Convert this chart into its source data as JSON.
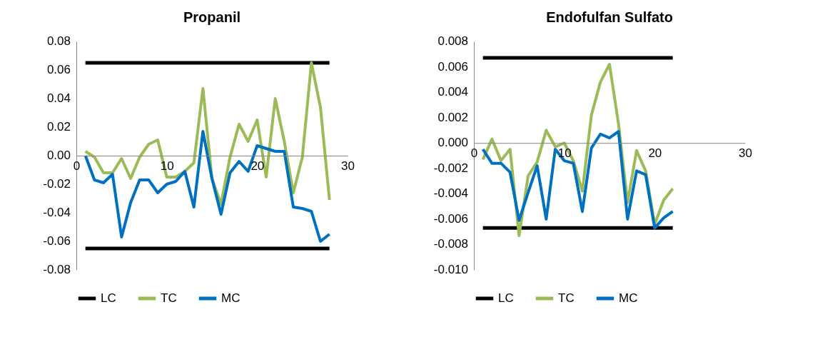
{
  "chart_data": [
    {
      "type": "line",
      "title": "Propanil",
      "xlim": [
        0,
        30
      ],
      "xticks": [
        0,
        10,
        20,
        30
      ],
      "ylim": [
        -0.08,
        0.08
      ],
      "yticks": [
        {
          "value": -0.08,
          "label": "-0.08"
        },
        {
          "value": -0.06,
          "label": "-0.06"
        },
        {
          "value": -0.04,
          "label": "-0.04"
        },
        {
          "value": -0.02,
          "label": "-0.02"
        },
        {
          "value": 0,
          "label": "0.00"
        },
        {
          "value": 0.02,
          "label": "0.02"
        },
        {
          "value": 0.04,
          "label": "0.04"
        },
        {
          "value": 0.06,
          "label": "0.06"
        },
        {
          "value": 0.08,
          "label": "0.08"
        }
      ],
      "grid": false,
      "legend": "bottom",
      "line_style": "solid",
      "marker": "none",
      "series": [
        {
          "name": "LC",
          "color": "#000000",
          "x": [
            1,
            28
          ],
          "values": [
            0.065,
            0.065
          ]
        },
        {
          "color": "#000000",
          "x": [
            1,
            28
          ],
          "values": [
            -0.065,
            -0.065
          ]
        },
        {
          "name": "TC",
          "color": "#9bbb59",
          "x": [
            1,
            2,
            3,
            4,
            5,
            6,
            7,
            8,
            9,
            10,
            11,
            12,
            13,
            14,
            15,
            16,
            17,
            18,
            19,
            20,
            21,
            22,
            23,
            24,
            25,
            26,
            27,
            28
          ],
          "values": [
            0.003,
            -0.001,
            -0.012,
            -0.012,
            -0.002,
            -0.016,
            -0.001,
            0.008,
            0.011,
            -0.015,
            -0.015,
            -0.011,
            -0.005,
            0.047,
            -0.016,
            -0.034,
            -0.001,
            0.022,
            0.01,
            0.025,
            -0.015,
            0.04,
            0.01,
            -0.026,
            -0.001,
            0.065,
            0.034,
            -0.031
          ]
        },
        {
          "name": "MC",
          "color": "#0070c0",
          "x": [
            1,
            2,
            3,
            4,
            5,
            6,
            7,
            8,
            9,
            10,
            11,
            12,
            13,
            14,
            15,
            16,
            17,
            18,
            19,
            20,
            21,
            22,
            23,
            24,
            25,
            26,
            27,
            28
          ],
          "values": [
            0.0,
            -0.017,
            -0.019,
            -0.013,
            -0.057,
            -0.033,
            -0.017,
            -0.017,
            -0.026,
            -0.02,
            -0.018,
            -0.011,
            -0.036,
            0.017,
            -0.016,
            -0.041,
            -0.012,
            -0.004,
            -0.011,
            0.007,
            0.005,
            0.003,
            0.003,
            -0.036,
            -0.037,
            -0.039,
            -0.06,
            -0.055
          ]
        }
      ]
    },
    {
      "type": "line",
      "title": "Endofulfan Sulfato",
      "xlim": [
        0,
        30
      ],
      "xticks": [
        0,
        10,
        20,
        30
      ],
      "ylim": [
        -0.01,
        0.008
      ],
      "yticks": [
        {
          "value": -0.01,
          "label": "-0.010"
        },
        {
          "value": -0.008,
          "label": "-0.008"
        },
        {
          "value": -0.006,
          "label": "-0.006"
        },
        {
          "value": -0.004,
          "label": "-0.004"
        },
        {
          "value": -0.002,
          "label": "-0.002"
        },
        {
          "value": 0,
          "label": "0.000"
        },
        {
          "value": 0.002,
          "label": "0.002"
        },
        {
          "value": 0.004,
          "label": "0.004"
        },
        {
          "value": 0.006,
          "label": "0.006"
        },
        {
          "value": 0.008,
          "label": "0.008"
        }
      ],
      "grid": false,
      "legend": "bottom",
      "line_style": "solid",
      "marker": "none",
      "series": [
        {
          "name": "LC",
          "color": "#000000",
          "x": [
            1,
            22
          ],
          "values": [
            0.0067,
            0.0067
          ]
        },
        {
          "color": "#000000",
          "x": [
            1,
            22
          ],
          "values": [
            -0.0067,
            -0.0067
          ]
        },
        {
          "name": "TC",
          "color": "#9bbb59",
          "x": [
            1,
            2,
            3,
            4,
            5,
            6,
            7,
            8,
            9,
            10,
            11,
            12,
            13,
            14,
            15,
            16,
            17,
            18,
            19,
            20,
            21,
            22
          ],
          "values": [
            -0.0013,
            0.0003,
            -0.0014,
            -0.0005,
            -0.0073,
            -0.0026,
            -0.0015,
            0.001,
            -0.0003,
            0.0,
            -0.0014,
            -0.0038,
            0.0022,
            0.0048,
            0.0062,
            0.0015,
            -0.0047,
            -0.0006,
            -0.0022,
            -0.0064,
            -0.0045,
            -0.0036
          ]
        },
        {
          "name": "MC",
          "color": "#0070c0",
          "x": [
            1,
            2,
            3,
            4,
            5,
            6,
            7,
            8,
            9,
            10,
            11,
            12,
            13,
            14,
            15,
            16,
            17,
            18,
            19,
            20,
            21,
            22
          ],
          "values": [
            -0.0005,
            -0.0016,
            -0.0016,
            -0.0023,
            -0.0061,
            -0.0039,
            -0.0018,
            -0.006,
            -0.0005,
            -0.0014,
            -0.0016,
            -0.0054,
            -0.0004,
            0.0007,
            0.0004,
            0.0009,
            -0.006,
            -0.0022,
            -0.0025,
            -0.0067,
            -0.0059,
            -0.0054
          ]
        }
      ]
    }
  ]
}
